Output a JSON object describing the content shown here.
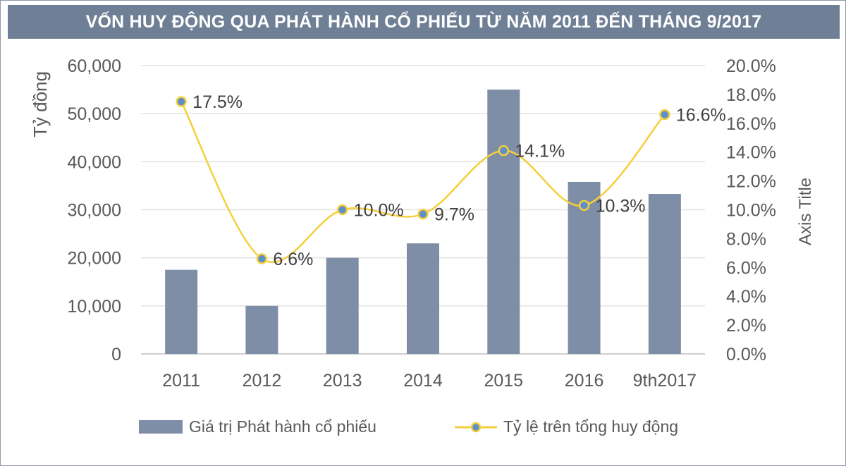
{
  "chart_data": {
    "type": "bar",
    "title": "VỐN HUY ĐỘNG QUA PHÁT HÀNH CỔ PHIẾU TỪ NĂM 2011 ĐẾN THÁNG 9/2017",
    "categories": [
      "2011",
      "2012",
      "2013",
      "2014",
      "2015",
      "2016",
      "9th2017"
    ],
    "series": [
      {
        "name": "Giá trị Phát hành cổ phiếu",
        "type": "bar",
        "axis": "left",
        "values": [
          17500,
          10000,
          20000,
          23000,
          55000,
          35800,
          33300
        ],
        "color": "#7e8ea6"
      },
      {
        "name": "Tỷ lệ trên tổng huy động",
        "type": "line",
        "axis": "right",
        "values": [
          17.5,
          6.6,
          10.0,
          9.7,
          14.1,
          10.3,
          16.6
        ],
        "labels": [
          "17.5%",
          "6.6%",
          "10.0%",
          "9.7%",
          "14.1%",
          "10.3%",
          "16.6%"
        ],
        "color": "#f5cf3b",
        "marker_color": "#5f8fc9"
      }
    ],
    "ylabel": "Tỷ đồng",
    "y2label": "Axis Title",
    "ylim": [
      0,
      60000
    ],
    "y2lim": [
      0,
      20
    ],
    "yticks": [
      "0",
      "10,000",
      "20,000",
      "30,000",
      "40,000",
      "50,000",
      "60,000"
    ],
    "y2ticks": [
      "0.0%",
      "2.0%",
      "4.0%",
      "6.0%",
      "8.0%",
      "10.0%",
      "12.0%",
      "14.0%",
      "16.0%",
      "18.0%",
      "20.0%"
    ],
    "grid": true,
    "legend_position": "bottom"
  }
}
